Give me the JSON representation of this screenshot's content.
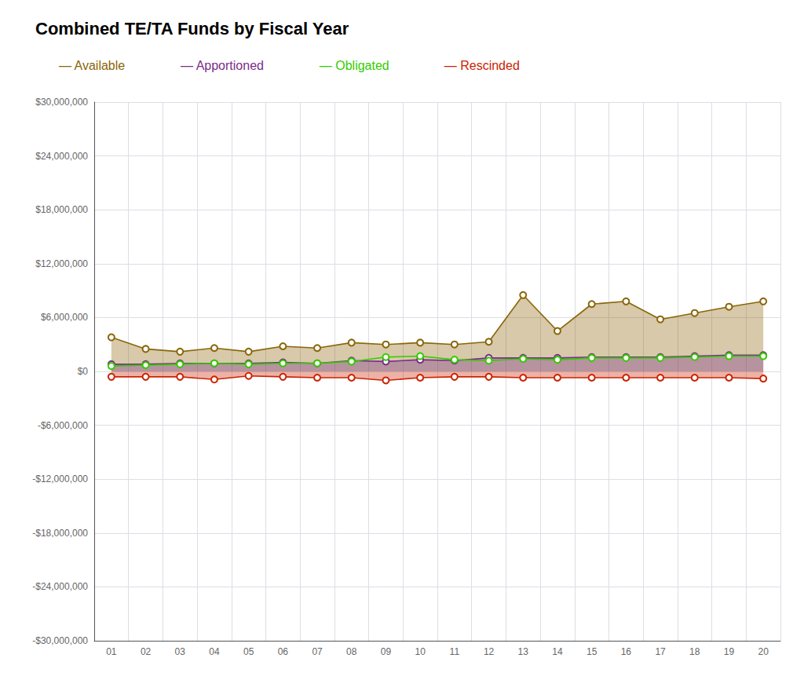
{
  "chart_data": {
    "type": "line",
    "title": "Combined TE/TA Funds by Fiscal Year",
    "categories": [
      "01",
      "02",
      "03",
      "04",
      "05",
      "06",
      "07",
      "08",
      "09",
      "10",
      "11",
      "12",
      "13",
      "14",
      "15",
      "16",
      "17",
      "18",
      "19",
      "20"
    ],
    "series": [
      {
        "name": "— Available",
        "color": "#8B6508",
        "type": "area",
        "values": [
          3800000,
          2500000,
          2200000,
          2600000,
          2200000,
          2800000,
          2600000,
          3200000,
          3000000,
          3200000,
          3000000,
          3300000,
          8500000,
          4500000,
          7500000,
          7800000,
          5800000,
          6500000,
          7200000,
          7800000
        ]
      },
      {
        "name": "— Apportioned",
        "color": "#7B2D8B",
        "type": "area",
        "values": [
          800000,
          800000,
          900000,
          900000,
          900000,
          1000000,
          900000,
          1200000,
          1100000,
          1300000,
          1200000,
          1500000,
          1500000,
          1500000,
          1600000,
          1600000,
          1600000,
          1700000,
          1800000,
          1800000
        ]
      },
      {
        "name": "— Obligated",
        "color": "#33CC00",
        "type": "line",
        "values": [
          600000,
          700000,
          800000,
          900000,
          800000,
          900000,
          900000,
          1100000,
          1600000,
          1700000,
          1300000,
          1200000,
          1400000,
          1300000,
          1500000,
          1500000,
          1500000,
          1600000,
          1700000,
          1700000
        ]
      },
      {
        "name": "— Rescinded",
        "color": "#CC2200",
        "type": "area",
        "values": [
          -600000,
          -600000,
          -600000,
          -900000,
          -500000,
          -600000,
          -700000,
          -700000,
          -1000000,
          -700000,
          -600000,
          -600000,
          -700000,
          -700000,
          -700000,
          -700000,
          -700000,
          -700000,
          -700000,
          -800000
        ]
      }
    ],
    "ylim": [
      -30000000,
      30000000
    ],
    "yticks": [
      {
        "value": -30000000,
        "label": "-$30,000,000"
      },
      {
        "value": -24000000,
        "label": "-$24,000,000"
      },
      {
        "value": -18000000,
        "label": "-$18,000,000"
      },
      {
        "value": -12000000,
        "label": "-$12,000,000"
      },
      {
        "value": -6000000,
        "label": "-$6,000,000"
      },
      {
        "value": 0,
        "label": "$0"
      },
      {
        "value": 6000000,
        "label": "$6,000,000"
      },
      {
        "value": 12000000,
        "label": "$12,000,000"
      },
      {
        "value": 18000000,
        "label": "$18,000,000"
      },
      {
        "value": 24000000,
        "label": "$24,000,000"
      },
      {
        "value": 30000000,
        "label": "$30,000,000"
      }
    ],
    "grid": true,
    "legend": "top left",
    "marker": "circle"
  }
}
